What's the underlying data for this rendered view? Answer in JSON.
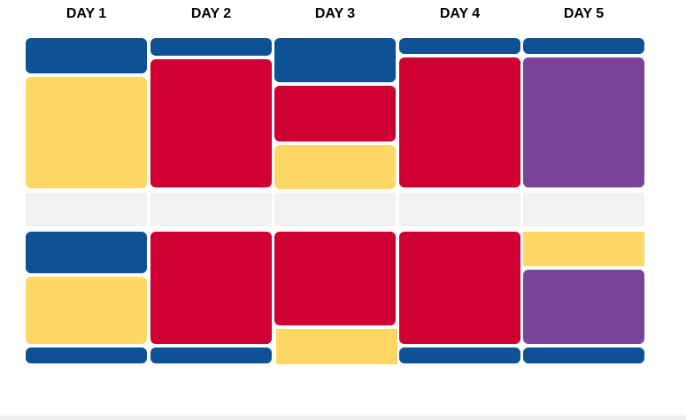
{
  "colors": {
    "blue": "#0c5294",
    "red": "#cd0031",
    "yellow": "#fed764",
    "purple": "#7b429c",
    "break": "#f2f2f2"
  },
  "days": [
    {
      "label": "DAY 1"
    },
    {
      "label": "DAY 2"
    },
    {
      "label": "DAY 3"
    },
    {
      "label": "DAY 4"
    },
    {
      "label": "DAY 5"
    }
  ],
  "blocks": [
    [
      {
        "kind": "session",
        "color": "blue"
      },
      {
        "kind": "session",
        "color": "yellow"
      },
      {
        "kind": "break"
      },
      {
        "kind": "session",
        "color": "blue"
      },
      {
        "kind": "session",
        "color": "yellow"
      },
      {
        "kind": "session",
        "color": "blue"
      }
    ],
    [
      {
        "kind": "session",
        "color": "blue"
      },
      {
        "kind": "session",
        "color": "red"
      },
      {
        "kind": "break"
      },
      {
        "kind": "session",
        "color": "red"
      },
      {
        "kind": "session",
        "color": "blue"
      }
    ],
    [
      {
        "kind": "session",
        "color": "blue"
      },
      {
        "kind": "session",
        "color": "red"
      },
      {
        "kind": "session",
        "color": "yellow"
      },
      {
        "kind": "break"
      },
      {
        "kind": "session",
        "color": "red"
      },
      {
        "kind": "session",
        "color": "yellow"
      }
    ],
    [
      {
        "kind": "session",
        "color": "blue"
      },
      {
        "kind": "session",
        "color": "red"
      },
      {
        "kind": "break"
      },
      {
        "kind": "session",
        "color": "red"
      },
      {
        "kind": "session",
        "color": "blue"
      }
    ],
    [
      {
        "kind": "session",
        "color": "blue"
      },
      {
        "kind": "session",
        "color": "purple"
      },
      {
        "kind": "break"
      },
      {
        "kind": "session",
        "color": "yellow"
      },
      {
        "kind": "session",
        "color": "purple"
      },
      {
        "kind": "session",
        "color": "blue"
      }
    ]
  ]
}
